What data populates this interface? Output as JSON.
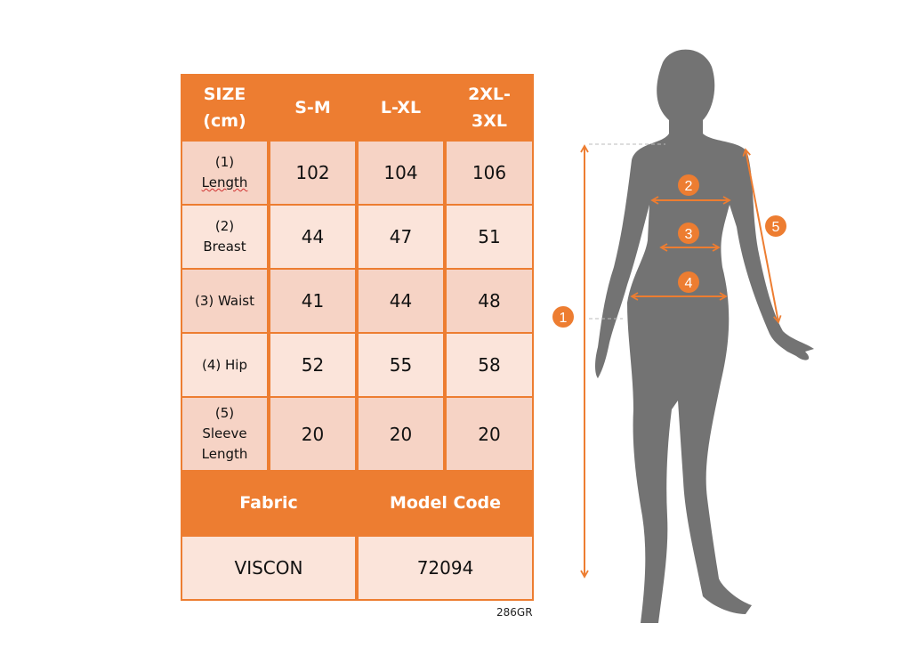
{
  "colors": {
    "accent": "#ed7d31",
    "row_dark": "#f6d3c5",
    "row_light": "#fbe4da",
    "silhouette": "#737373"
  },
  "table": {
    "header": {
      "size_line1": "SIZE",
      "size_line2": "(cm)",
      "columns": [
        {
          "l1": "S-M",
          "l2": ""
        },
        {
          "l1": "L-XL",
          "l2": ""
        },
        {
          "l1": "2XL-",
          "l2": "3XL"
        }
      ]
    },
    "rows": [
      {
        "label_l1": "(1)",
        "label_l2": "Length",
        "label_l3": "",
        "values": [
          "102",
          "104",
          "106"
        ]
      },
      {
        "label_l1": "(2)",
        "label_l2": "Breast",
        "label_l3": "",
        "values": [
          "44",
          "47",
          "51"
        ]
      },
      {
        "label_l1": "(3) Waist",
        "label_l2": "",
        "label_l3": "",
        "values": [
          "41",
          "44",
          "48"
        ]
      },
      {
        "label_l1": "(4) Hip",
        "label_l2": "",
        "label_l3": "",
        "values": [
          "52",
          "55",
          "58"
        ]
      },
      {
        "label_l1": "(5)",
        "label_l2": "Sleeve",
        "label_l3": "Length",
        "values": [
          "20",
          "20",
          "20"
        ]
      }
    ],
    "fabric_label": "Fabric",
    "model_code_label": "Model Code",
    "fabric_value": "VISCON",
    "model_code_value": "72094"
  },
  "product_code": "286GR",
  "figure": {
    "markers": [
      "1",
      "2",
      "3",
      "4",
      "5"
    ]
  }
}
